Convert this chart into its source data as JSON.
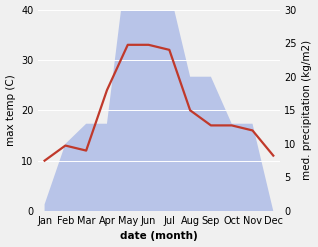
{
  "months": [
    "Jan",
    "Feb",
    "Mar",
    "Apr",
    "May",
    "Jun",
    "Jul",
    "Aug",
    "Sep",
    "Oct",
    "Nov",
    "Dec"
  ],
  "temperature": [
    10,
    13,
    12,
    24,
    33,
    33,
    32,
    20,
    17,
    17,
    16,
    11
  ],
  "precipitation": [
    1,
    10,
    13,
    13,
    38,
    33,
    33,
    20,
    20,
    13,
    13,
    0
  ],
  "temp_color": "#c0392b",
  "precip_color": "#b8c4e8",
  "ylabel_left": "max temp (C)",
  "ylabel_right": "med. precipitation (kg/m2)",
  "xlabel": "date (month)",
  "ylim_left": [
    0,
    40
  ],
  "ylim_right": [
    0,
    30
  ],
  "yticks_left": [
    0,
    10,
    20,
    30,
    40
  ],
  "yticks_right": [
    0,
    5,
    10,
    15,
    20,
    25,
    30
  ],
  "bg_color": "#f0f0f0",
  "label_fontsize": 7.5,
  "tick_fontsize": 7
}
